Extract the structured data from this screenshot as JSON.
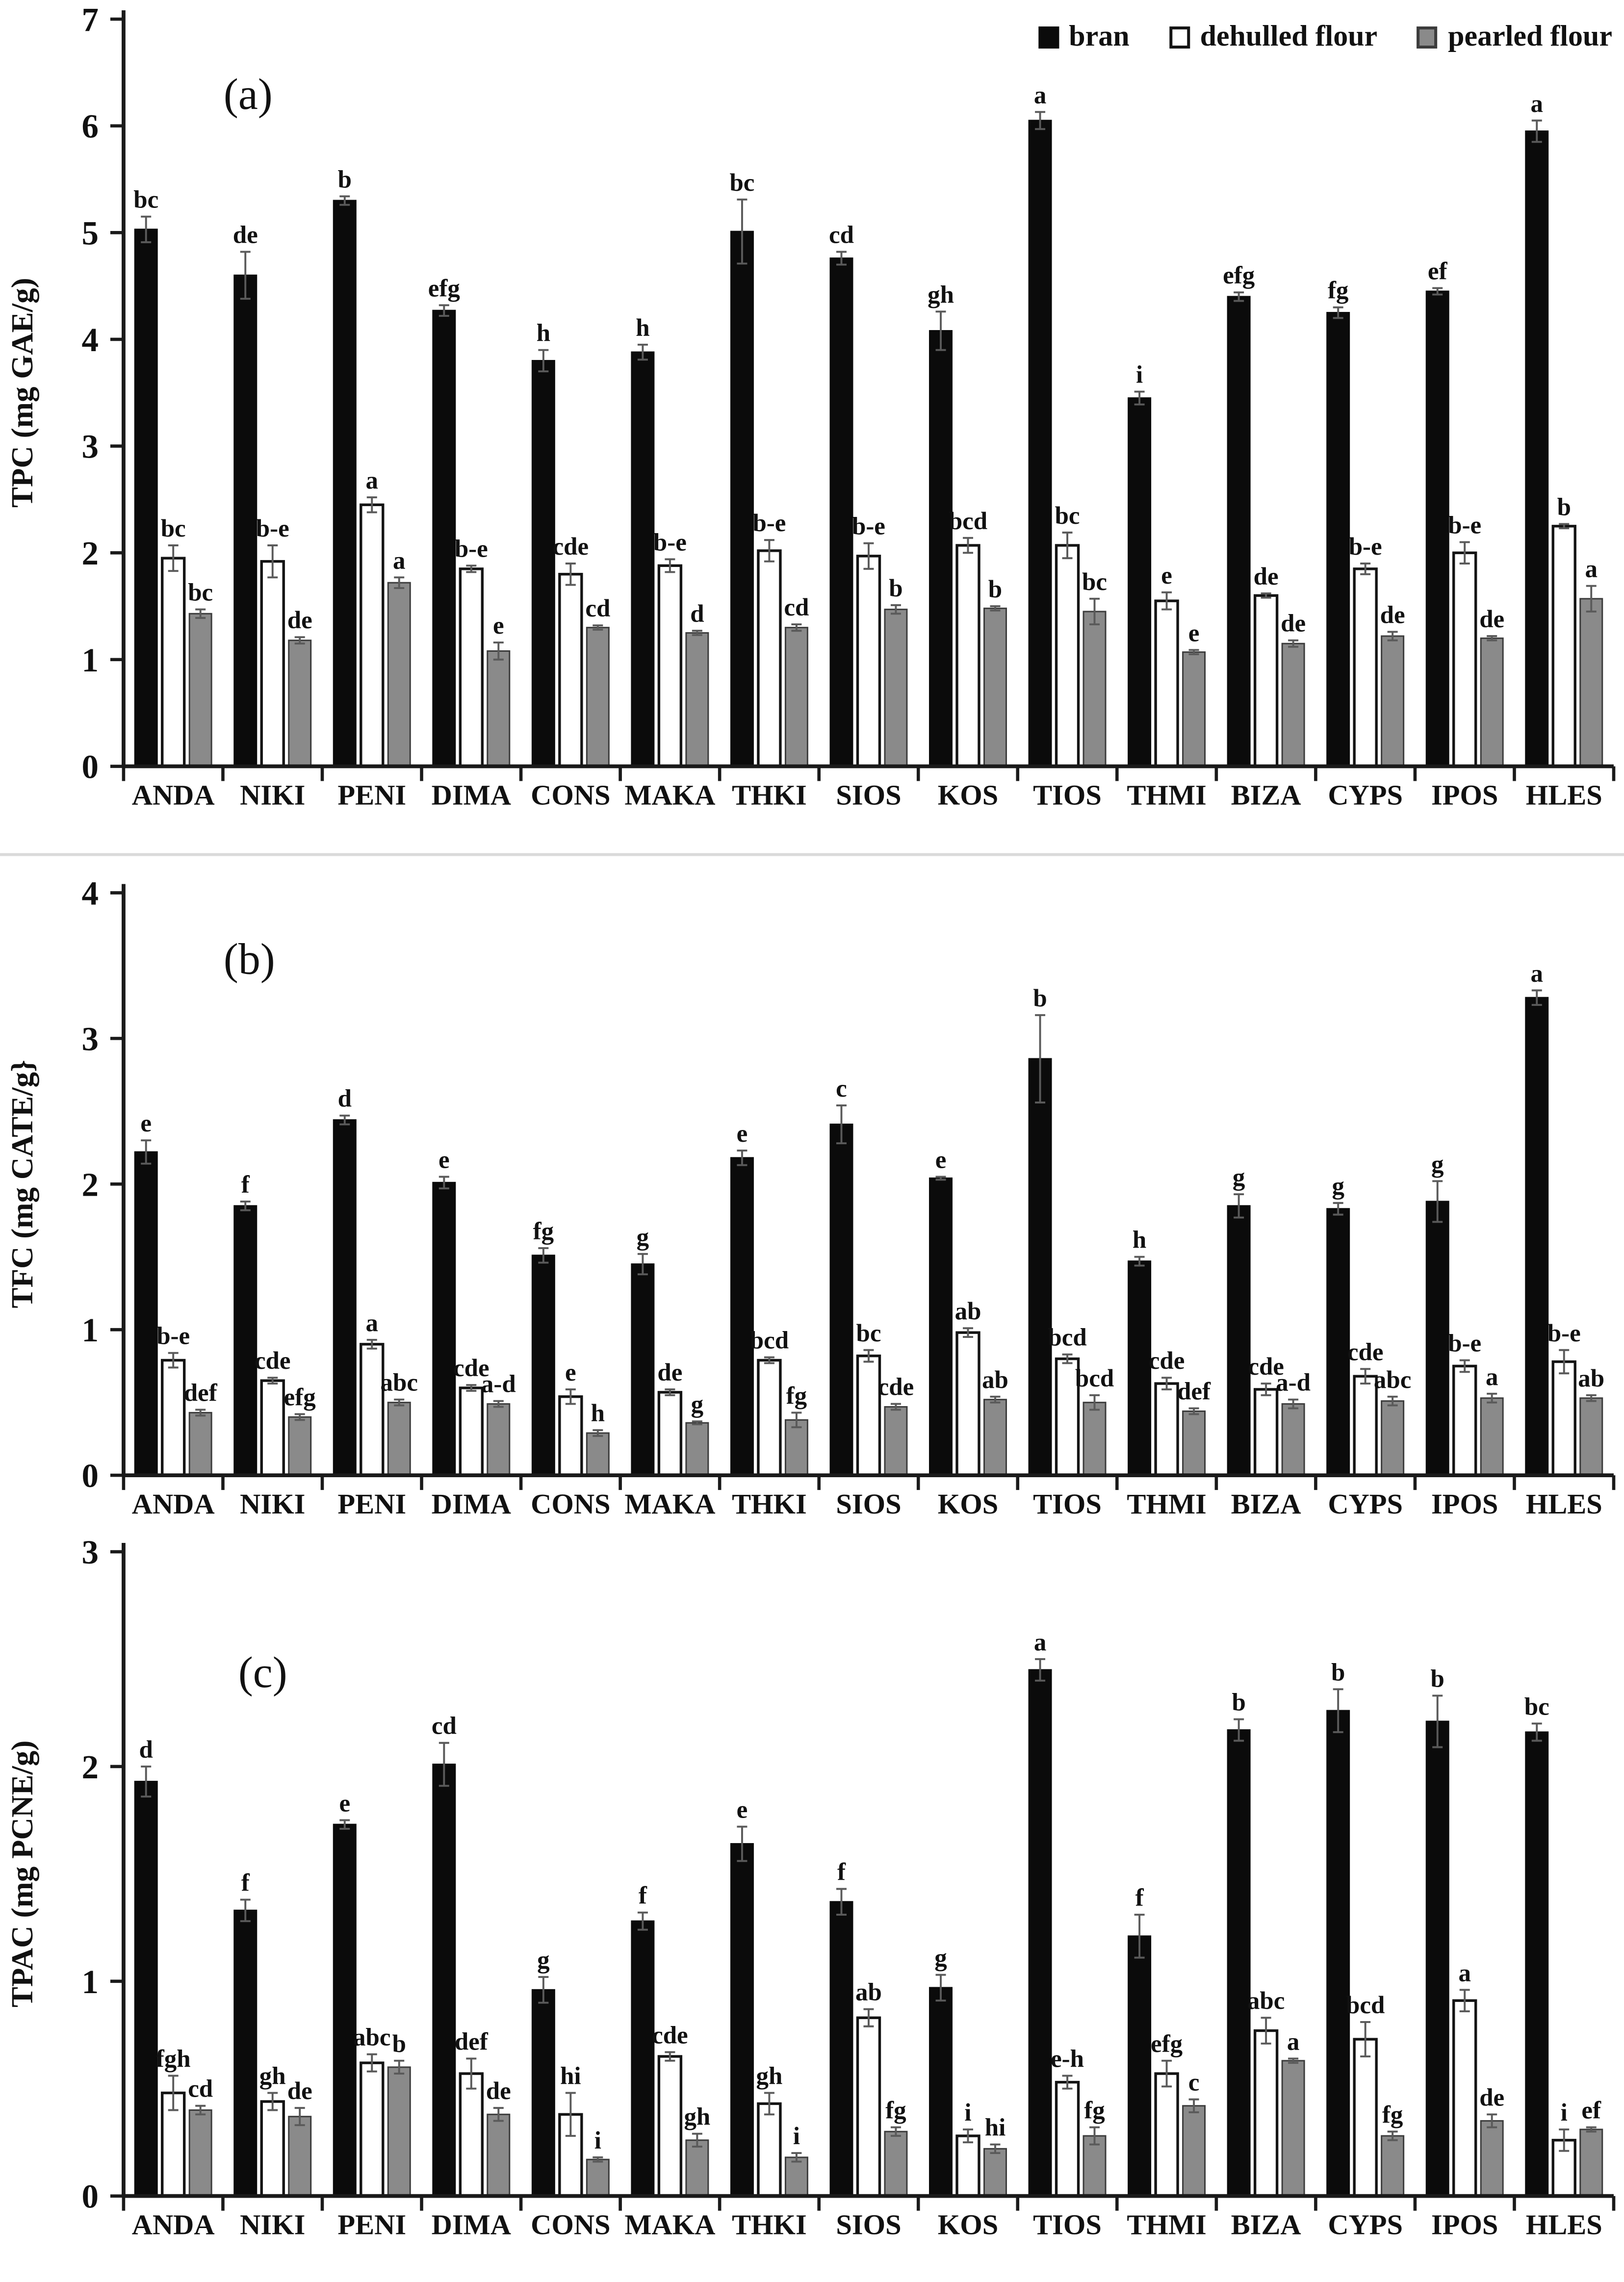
{
  "figure": {
    "legend": [
      {
        "label": "bran",
        "swatch": "bran-swatch",
        "fill": "#0b0b0b",
        "border": "#0b0b0b"
      },
      {
        "label": "dehulled flour",
        "swatch": "dehulled-flour-swatch",
        "fill": "#ffffff",
        "border": "#141414"
      },
      {
        "label": "pearled flour",
        "swatch": "pearled-flour-swatch",
        "fill": "#8a8a8a",
        "border": "#3c3c3c"
      }
    ],
    "colors": {
      "axis": "#1a1a1a",
      "text": "#111111",
      "error_bar": "#5a5a5a"
    }
  },
  "chart_data": [
    {
      "type": "bar",
      "panel_tag": "(a)",
      "ylabel": "TPC (mg GAE/g)",
      "ylim": [
        0,
        7
      ],
      "yticks": [
        "0",
        "1",
        "2",
        "3",
        "4",
        "5",
        "6",
        "7"
      ],
      "grid": false,
      "legend_position": "top-right",
      "categories": [
        "ANDA",
        "NIKI",
        "PENI",
        "DIMA",
        "CONS",
        "MAKA",
        "THKI",
        "SIOS",
        "KOS",
        "TIOS",
        "THMI",
        "BIZA",
        "CYPS",
        "IPOS",
        "HLES"
      ],
      "series": [
        {
          "name": "bran",
          "values": [
            5.03,
            4.6,
            5.3,
            4.27,
            3.8,
            3.88,
            5.01,
            4.76,
            4.08,
            6.05,
            3.45,
            4.4,
            4.25,
            4.45,
            5.95
          ],
          "errors": [
            0.12,
            0.22,
            0.04,
            0.05,
            0.1,
            0.07,
            0.3,
            0.06,
            0.18,
            0.08,
            0.06,
            0.04,
            0.05,
            0.03,
            0.1
          ],
          "letters": [
            "bc",
            "de",
            "b",
            "efg",
            "h",
            "h",
            "bc",
            "cd",
            "gh",
            "a",
            "i",
            "efg",
            "fg",
            "ef",
            "a"
          ]
        },
        {
          "name": "dehulled flour",
          "values": [
            1.95,
            1.92,
            2.45,
            1.85,
            1.8,
            1.88,
            2.02,
            1.97,
            2.07,
            2.07,
            1.55,
            1.6,
            1.85,
            2.0,
            2.25
          ],
          "errors": [
            0.12,
            0.15,
            0.07,
            0.03,
            0.1,
            0.06,
            0.1,
            0.12,
            0.07,
            0.12,
            0.08,
            0.02,
            0.05,
            0.1,
            0.02
          ],
          "letters": [
            "bc",
            "b-e",
            "a",
            "b-e",
            "cde",
            "b-e",
            "b-e",
            "b-e",
            "bcd",
            "bc",
            "e",
            "de",
            "b-e",
            "b-e",
            "b"
          ]
        },
        {
          "name": "pearled flour",
          "values": [
            1.43,
            1.18,
            1.72,
            1.08,
            1.3,
            1.25,
            1.3,
            1.47,
            1.48,
            1.45,
            1.07,
            1.15,
            1.22,
            1.2,
            1.57
          ],
          "errors": [
            0.04,
            0.03,
            0.05,
            0.08,
            0.02,
            0.02,
            0.03,
            0.04,
            0.02,
            0.12,
            0.02,
            0.03,
            0.04,
            0.02,
            0.12
          ],
          "letters": [
            "bc",
            "de",
            "a",
            "e",
            "cd",
            "d",
            "cd",
            "b",
            "b",
            "bc",
            "e",
            "de",
            "de",
            "de",
            "a"
          ]
        }
      ]
    },
    {
      "type": "bar",
      "panel_tag": "(b)",
      "ylabel": "TFC (mg CATE/g}",
      "ylim": [
        0,
        4
      ],
      "yticks": [
        "0",
        "1",
        "2",
        "3",
        "4"
      ],
      "grid": false,
      "categories": [
        "ANDA",
        "NIKI",
        "PENI",
        "DIMA",
        "CONS",
        "MAKA",
        "THKI",
        "SIOS",
        "KOS",
        "TIOS",
        "THMI",
        "BIZA",
        "CYPS",
        "IPOS",
        "HLES"
      ],
      "series": [
        {
          "name": "bran",
          "values": [
            2.22,
            1.85,
            2.44,
            2.01,
            1.51,
            1.45,
            2.18,
            2.41,
            2.04,
            2.86,
            1.47,
            1.85,
            1.83,
            1.88,
            3.28
          ],
          "errors": [
            0.08,
            0.03,
            0.03,
            0.04,
            0.05,
            0.07,
            0.05,
            0.13,
            0.01,
            0.3,
            0.03,
            0.08,
            0.04,
            0.14,
            0.05
          ],
          "letters": [
            "e",
            "f",
            "d",
            "e",
            "fg",
            "g",
            "e",
            "c",
            "e",
            "b",
            "h",
            "g",
            "g",
            "g",
            "a"
          ]
        },
        {
          "name": "dehulled flour",
          "values": [
            0.79,
            0.65,
            0.9,
            0.6,
            0.54,
            0.57,
            0.79,
            0.82,
            0.98,
            0.8,
            0.63,
            0.59,
            0.68,
            0.75,
            0.78
          ],
          "errors": [
            0.05,
            0.02,
            0.03,
            0.02,
            0.05,
            0.02,
            0.02,
            0.04,
            0.03,
            0.03,
            0.04,
            0.04,
            0.05,
            0.04,
            0.08
          ],
          "letters": [
            "b-e",
            "cde",
            "a",
            "cde",
            "e",
            "de",
            "bcd",
            "bc",
            "ab",
            "bcd",
            "cde",
            "cde",
            "cde",
            "b-e",
            "b-e"
          ]
        },
        {
          "name": "pearled flour",
          "values": [
            0.43,
            0.4,
            0.5,
            0.49,
            0.29,
            0.36,
            0.38,
            0.47,
            0.52,
            0.5,
            0.44,
            0.49,
            0.51,
            0.53,
            0.53
          ],
          "errors": [
            0.02,
            0.02,
            0.02,
            0.02,
            0.02,
            0.01,
            0.05,
            0.02,
            0.02,
            0.05,
            0.02,
            0.03,
            0.03,
            0.03,
            0.02
          ],
          "letters": [
            "def",
            "efg",
            "abc",
            "a-d",
            "h",
            "g",
            "fg",
            "cde",
            "ab",
            "bcd",
            "def",
            "a-d",
            "abc",
            "a",
            "ab"
          ]
        }
      ]
    },
    {
      "type": "bar",
      "panel_tag": "(c)",
      "ylabel": "TPAC (mg PCNE/g)",
      "ylim": [
        0,
        3
      ],
      "yticks": [
        "0",
        "1",
        "2",
        "3"
      ],
      "grid": false,
      "categories": [
        "ANDA",
        "NIKI",
        "PENI",
        "DIMA",
        "CONS",
        "MAKA",
        "THKI",
        "SIOS",
        "KOS",
        "TIOS",
        "THMI",
        "BIZA",
        "CYPS",
        "IPOS",
        "HLES"
      ],
      "series": [
        {
          "name": "bran",
          "values": [
            1.93,
            1.33,
            1.73,
            2.01,
            0.96,
            1.28,
            1.64,
            1.37,
            0.97,
            2.45,
            1.21,
            2.17,
            2.26,
            2.21,
            2.16
          ],
          "errors": [
            0.07,
            0.05,
            0.02,
            0.1,
            0.06,
            0.04,
            0.08,
            0.06,
            0.06,
            0.05,
            0.1,
            0.05,
            0.1,
            0.12,
            0.04
          ],
          "letters": [
            "d",
            "f",
            "e",
            "cd",
            "g",
            "f",
            "e",
            "f",
            "g",
            "a",
            "f",
            "b",
            "b",
            "b",
            "bc"
          ]
        },
        {
          "name": "dehulled flour",
          "values": [
            0.48,
            0.44,
            0.62,
            0.57,
            0.38,
            0.65,
            0.43,
            0.83,
            0.28,
            0.53,
            0.57,
            0.77,
            0.73,
            0.91,
            0.26
          ],
          "errors": [
            0.08,
            0.04,
            0.04,
            0.07,
            0.1,
            0.02,
            0.05,
            0.04,
            0.03,
            0.03,
            0.06,
            0.06,
            0.08,
            0.05,
            0.05
          ],
          "letters": [
            "fgh",
            "gh",
            "abc",
            "def",
            "hi",
            "cde",
            "gh",
            "ab",
            "i",
            "e-h",
            "efg",
            "abc",
            "bcd",
            "a",
            "i"
          ]
        },
        {
          "name": "pearled flour",
          "values": [
            0.4,
            0.37,
            0.6,
            0.38,
            0.17,
            0.26,
            0.18,
            0.3,
            0.22,
            0.28,
            0.42,
            0.63,
            0.28,
            0.35,
            0.31
          ],
          "errors": [
            0.02,
            0.04,
            0.03,
            0.03,
            0.01,
            0.03,
            0.02,
            0.02,
            0.02,
            0.04,
            0.03,
            0.01,
            0.02,
            0.03,
            0.01
          ],
          "letters": [
            "cd",
            "de",
            "b",
            "de",
            "i",
            "gh",
            "i",
            "fg",
            "hi",
            "fg",
            "c",
            "a",
            "fg",
            "de",
            "ef"
          ]
        }
      ]
    }
  ]
}
